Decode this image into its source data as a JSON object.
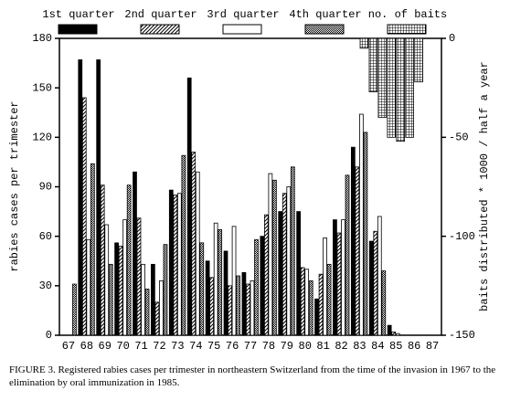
{
  "chart_data": {
    "type": "bar",
    "ylabel": "rabies cases per trimester",
    "y2label": "baits distributed * 1000 / half a year",
    "caption": "FIGURE 3.   Registered rabies cases per trimester in northeastern Switzerland from the time of the invasion in 1967 to the elimination by oral immunization in 1985.",
    "categories": [
      "67",
      "68",
      "69",
      "70",
      "71",
      "72",
      "73",
      "74",
      "75",
      "76",
      "77",
      "78",
      "79",
      "80",
      "81",
      "82",
      "83",
      "84",
      "85",
      "86",
      "87"
    ],
    "ylim": [
      0,
      180
    ],
    "yticks": [
      0,
      30,
      60,
      90,
      120,
      150,
      180
    ],
    "y2lim": [
      -150,
      0
    ],
    "y2ticks": [
      0,
      -50,
      -100,
      -150
    ],
    "series": [
      {
        "name": "1st quarter",
        "color": "#000000",
        "pattern": "solid",
        "values": [
          0,
          167,
          167,
          56,
          99,
          43,
          88,
          156,
          45,
          51,
          38,
          60,
          75,
          75,
          22,
          70,
          114,
          57,
          6,
          0,
          0
        ]
      },
      {
        "name": "2nd quarter",
        "color": "#000000",
        "pattern": "hatch",
        "values": [
          0,
          144,
          91,
          54,
          71,
          20,
          85,
          111,
          35,
          30,
          31,
          73,
          86,
          41,
          37,
          62,
          102,
          63,
          2,
          0,
          0
        ]
      },
      {
        "name": "3rd quarter",
        "color": "#000000",
        "pattern": "none",
        "values": [
          0,
          58,
          67,
          70,
          43,
          33,
          86,
          99,
          68,
          66,
          33,
          98,
          90,
          40,
          59,
          70,
          134,
          72,
          1,
          0,
          0
        ]
      },
      {
        "name": "4th quarter",
        "color": "#000000",
        "pattern": "check",
        "values": [
          31,
          104,
          43,
          91,
          28,
          55,
          109,
          56,
          64,
          36,
          58,
          94,
          102,
          33,
          43,
          97,
          123,
          39,
          0,
          0,
          0
        ]
      },
      {
        "name": "no. of baits",
        "color": "#000000",
        "pattern": "grid",
        "axis": "y2",
        "x": [
          83.25,
          83.75,
          84.25,
          84.75,
          85.25,
          85.75,
          86.25
        ],
        "values": [
          -5,
          -27,
          -40,
          -50,
          -52,
          -50,
          -22
        ]
      }
    ]
  }
}
